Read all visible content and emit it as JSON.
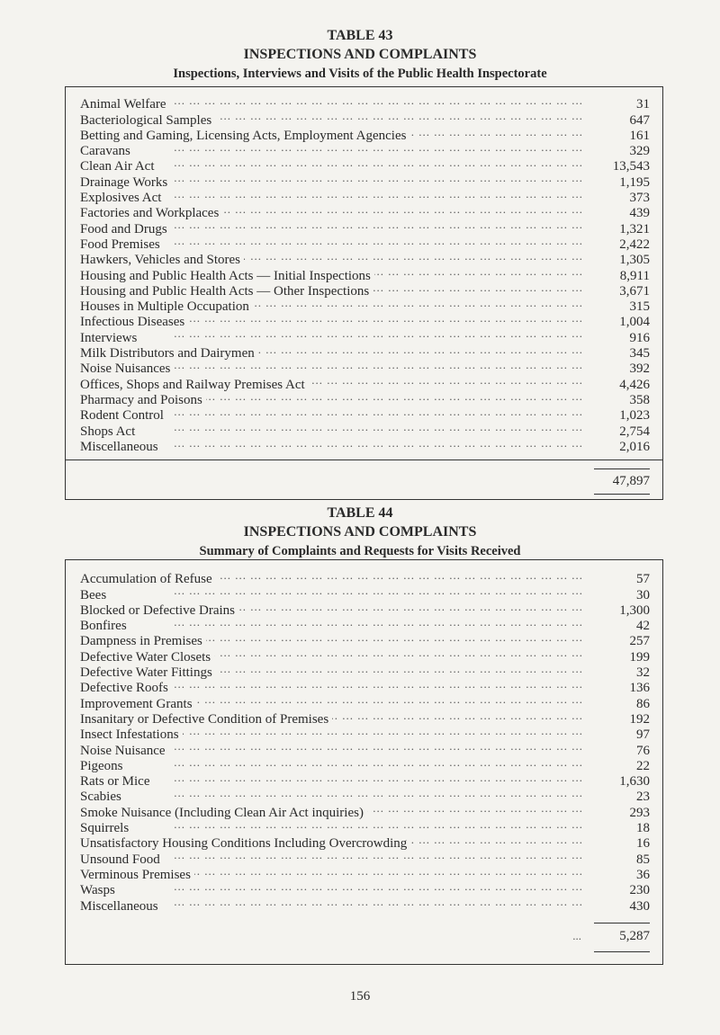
{
  "table43": {
    "number": "TABLE 43",
    "title": "INSPECTIONS AND COMPLAINTS",
    "subtitle": "Inspections, Interviews and Visits of the Public Health Inspectorate",
    "rows": [
      {
        "label": "Animal Welfare",
        "value": "31"
      },
      {
        "label": "Bacteriological Samples",
        "value": "647"
      },
      {
        "label": "Betting and Gaming, Licensing Acts, Employment Agencies",
        "value": "161"
      },
      {
        "label": "Caravans",
        "value": "329"
      },
      {
        "label": "Clean Air Act",
        "value": "13,543"
      },
      {
        "label": "Drainage Works",
        "value": "1,195"
      },
      {
        "label": "Explosives Act",
        "value": "373"
      },
      {
        "label": "Factories and Workplaces",
        "value": "439"
      },
      {
        "label": "Food and Drugs",
        "value": "1,321"
      },
      {
        "label": "Food Premises",
        "value": "2,422"
      },
      {
        "label": "Hawkers, Vehicles and Stores",
        "value": "1,305"
      },
      {
        "label": "Housing and Public Health Acts — Initial Inspections",
        "value": "8,911"
      },
      {
        "label": "Housing and Public Health Acts — Other Inspections",
        "value": "3,671"
      },
      {
        "label": "Houses in Multiple Occupation",
        "value": "315"
      },
      {
        "label": "Infectious Diseases",
        "value": "1,004"
      },
      {
        "label": "Interviews",
        "value": "916"
      },
      {
        "label": "Milk Distributors and Dairymen",
        "value": "345"
      },
      {
        "label": "Noise Nuisances",
        "value": "392"
      },
      {
        "label": "Offices, Shops and Railway Premises Act",
        "value": "4,426"
      },
      {
        "label": "Pharmacy and Poisons",
        "value": "358"
      },
      {
        "label": "Rodent Control",
        "value": "1,023"
      },
      {
        "label": "Shops Act",
        "value": "2,754"
      },
      {
        "label": "Miscellaneous",
        "value": "2,016"
      }
    ],
    "total": "47,897"
  },
  "table44": {
    "number": "TABLE 44",
    "title": "INSPECTIONS AND COMPLAINTS",
    "subtitle": "Summary of Complaints and Requests for Visits Received",
    "rows": [
      {
        "label": "Accumulation of Refuse",
        "value": "57"
      },
      {
        "label": "Bees",
        "value": "30"
      },
      {
        "label": "Blocked or Defective Drains",
        "value": "1,300"
      },
      {
        "label": "Bonfires",
        "value": "42"
      },
      {
        "label": "Dampness in Premises",
        "value": "257"
      },
      {
        "label": "Defective Water Closets",
        "value": "199"
      },
      {
        "label": "Defective Water Fittings",
        "value": "32"
      },
      {
        "label": "Defective Roofs",
        "value": "136"
      },
      {
        "label": "Improvement Grants",
        "value": "86"
      },
      {
        "label": "Insanitary or Defective Condition of Premises",
        "value": "192"
      },
      {
        "label": "Insect Infestations",
        "value": "97"
      },
      {
        "label": "Noise Nuisance",
        "value": "76"
      },
      {
        "label": "Pigeons",
        "value": "22"
      },
      {
        "label": "Rats or Mice",
        "value": "1,630"
      },
      {
        "label": "Scabies",
        "value": "23"
      },
      {
        "label": "Smoke Nuisance (Including Clean Air Act inquiries)",
        "value": "293"
      },
      {
        "label": "Squirrels",
        "value": "18"
      },
      {
        "label": "Unsatisfactory Housing Conditions Including Overcrowding",
        "value": "16"
      },
      {
        "label": "Unsound Food",
        "value": "85"
      },
      {
        "label": "Verminous Premises",
        "value": "36"
      },
      {
        "label": "Wasps",
        "value": "230"
      },
      {
        "label": "Miscellaneous",
        "value": "430"
      }
    ],
    "total_leader": "...",
    "total": "5,287"
  },
  "page_number": "156"
}
